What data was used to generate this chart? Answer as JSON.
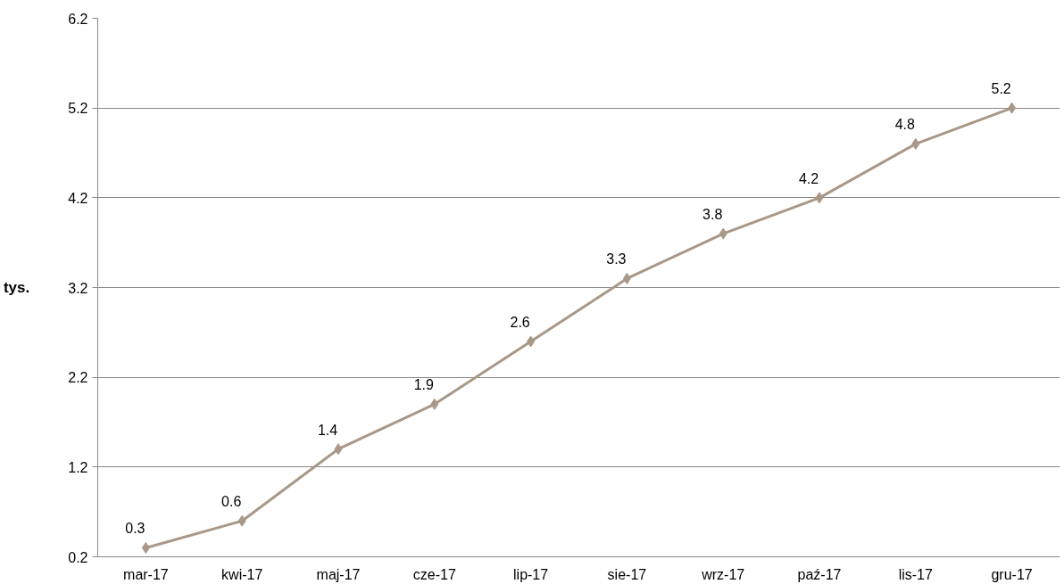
{
  "chart_data": {
    "type": "line",
    "ylabel": "tys.",
    "categories": [
      "mar-17",
      "kwi-17",
      "maj-17",
      "cze-17",
      "lip-17",
      "sie-17",
      "wrz-17",
      "paź-17",
      "lis-17",
      "gru-17"
    ],
    "series": [
      {
        "color": "#a89888",
        "values": [
          0.3,
          0.6,
          1.4,
          1.9,
          2.6,
          3.3,
          3.8,
          4.2,
          4.8,
          5.2
        ]
      }
    ],
    "ylim": [
      0.2,
      6.2
    ],
    "yticks": [
      0.2,
      1.2,
      2.2,
      3.2,
      4.2,
      5.2,
      6.2
    ],
    "grid": "y",
    "marker": "diamond",
    "line_style": "solid",
    "data_labels": true
  }
}
